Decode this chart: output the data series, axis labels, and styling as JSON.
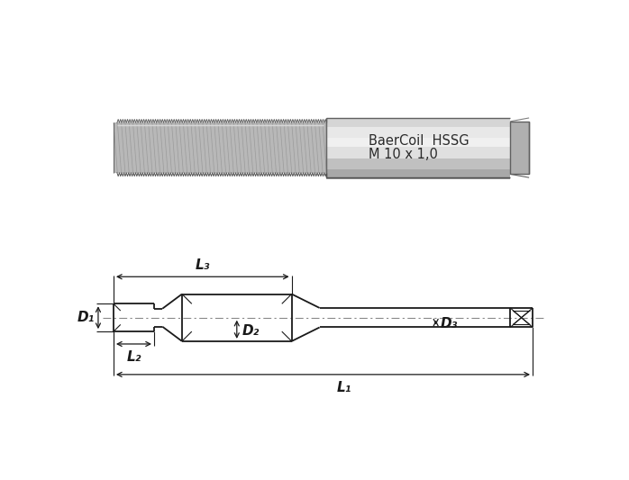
{
  "bg_color": "#ffffff",
  "line_color": "#1a1a1a",
  "cl_color": "#888888",
  "labels": {
    "brand": "BaerCoil  HSSG",
    "model": "M 10 x 1,0",
    "L1": "L₁",
    "L2": "L₂",
    "L3": "L₃",
    "D1": "D₁",
    "D2": "D₂",
    "D3": "D₃"
  },
  "photo_bg": "#f0f0f0",
  "tool_thread_color": "#b0b0b0",
  "tool_body_color": "#c8c8c8",
  "tool_shank_color": "#c0c0c0",
  "tool_shadow": "#909090"
}
